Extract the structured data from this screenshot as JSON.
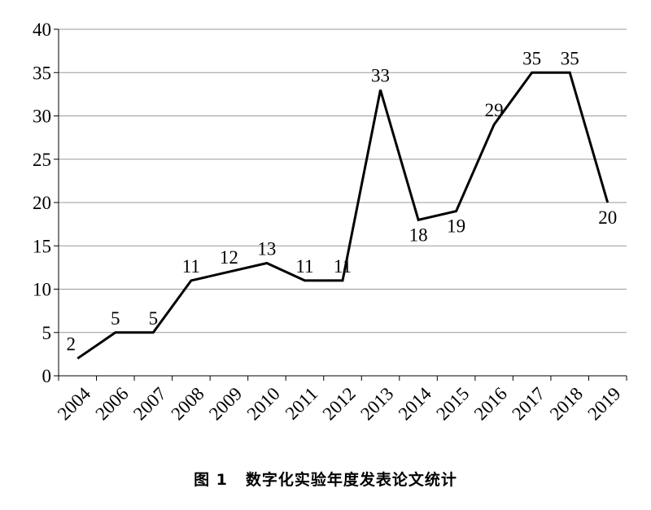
{
  "caption": {
    "figure_label": "图 1",
    "text": "数字化实验年度发表论文统计"
  },
  "chart_data": {
    "type": "line",
    "categories": [
      "2004",
      "2006",
      "2007",
      "2008",
      "2009",
      "2010",
      "2011",
      "2012",
      "2013",
      "2014",
      "2015",
      "2016",
      "2017",
      "2018",
      "2019"
    ],
    "series": [
      {
        "values": [
          2,
          5,
          5,
          11,
          12,
          13,
          11,
          11,
          33,
          18,
          19,
          29,
          35,
          35,
          20
        ],
        "color": "#000000"
      }
    ],
    "data_labels": [
      "2",
      "5",
      "5",
      "11",
      "12",
      "13",
      "11",
      "11",
      "33",
      "18",
      "19",
      "29",
      "35",
      "35",
      "20"
    ],
    "ylim": [
      0,
      40
    ],
    "yticks": [
      0,
      5,
      10,
      15,
      20,
      25,
      30,
      35,
      40
    ],
    "grid": true,
    "grid_color": "#999999",
    "line_color": "#000000",
    "title": "",
    "xlabel": "",
    "ylabel": ""
  }
}
